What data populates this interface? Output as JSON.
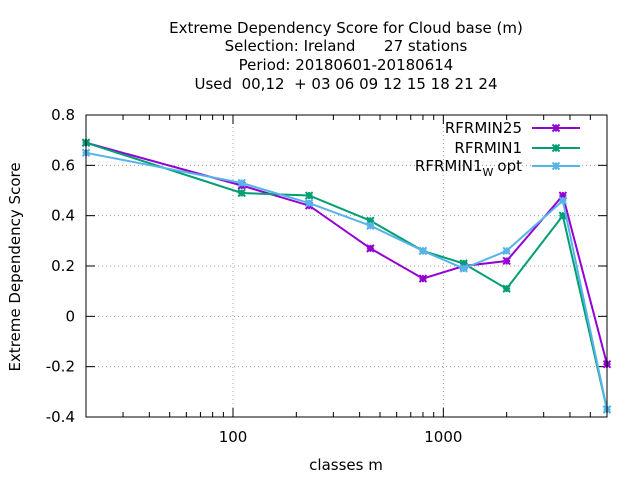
{
  "chart_data": {
    "type": "line",
    "title_lines": [
      "Extreme Dependency Score  for Cloud base (m)",
      "Selection: Ireland      27 stations",
      "Period: 20180601-20180614",
      "Used  00,12  + 03 06 09 12 15 18 21 24"
    ],
    "xlabel": "classes m",
    "ylabel": "Extreme Dependency Score",
    "x_scale": "log",
    "xlim": [
      20,
      6000
    ],
    "ylim": [
      -0.4,
      0.8
    ],
    "y_ticks": [
      -0.4,
      -0.2,
      0,
      0.2,
      0.4,
      0.6,
      0.8
    ],
    "y_tick_labels": [
      "-0.4",
      "-0.2",
      "0",
      "0.2",
      "0.4",
      "0.6",
      "0.8"
    ],
    "x_ticks": [
      100,
      1000
    ],
    "x_tick_labels": [
      "100",
      "1000"
    ],
    "grid": true,
    "legend_position": "top-right",
    "x": [
      20,
      110,
      230,
      450,
      800,
      1250,
      2000,
      3700,
      6000
    ],
    "series": [
      {
        "name": "RFRMIN25",
        "color": "#9400d3",
        "values": [
          0.69,
          0.52,
          0.44,
          0.27,
          0.15,
          0.2,
          0.22,
          0.48,
          -0.19
        ]
      },
      {
        "name": "RFRMIN1",
        "color": "#009e73",
        "values": [
          0.69,
          0.49,
          0.48,
          0.38,
          0.26,
          0.21,
          0.11,
          0.4,
          -0.37
        ]
      },
      {
        "name_parts": [
          "RFRMIN1",
          "W",
          "opt"
        ],
        "color": "#56b4e9",
        "values": [
          0.65,
          0.53,
          0.45,
          0.36,
          0.26,
          0.19,
          0.26,
          0.46,
          -0.37
        ]
      }
    ]
  }
}
